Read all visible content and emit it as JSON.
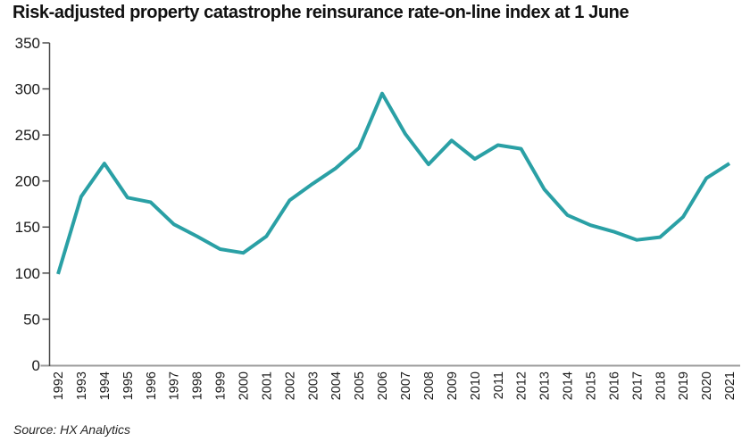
{
  "page": {
    "title": "Risk-adjusted property catastrophe reinsurance rate-on-line index at 1 June",
    "source": "Source: HX Analytics"
  },
  "colors": {
    "line": "#2aa0a5",
    "y_axis": "#4a4a4a",
    "x_axis": "#9c9c9c",
    "tick_text": "#1a1a1a"
  },
  "chart_data": {
    "type": "line",
    "title": "Risk-adjusted property catastrophe reinsurance rate-on-line index at 1 June",
    "x": [
      "1992",
      "1993",
      "1994",
      "1995",
      "1996",
      "1997",
      "1998",
      "1999",
      "2000",
      "2001",
      "2002",
      "2003",
      "2004",
      "2005",
      "2006",
      "2007",
      "2008",
      "2009",
      "2010",
      "2011",
      "2012",
      "2013",
      "2014",
      "2015",
      "2016",
      "2017",
      "2018",
      "2019",
      "2020",
      "2021"
    ],
    "series": [
      {
        "name": "Risk-adjusted property catastrophe reinsurance rate-on-line index",
        "values": [
          99,
          183,
          219,
          182,
          177,
          153,
          140,
          126,
          122,
          140,
          179,
          197,
          214,
          236,
          295,
          251,
          218,
          244,
          224,
          239,
          235,
          191,
          163,
          152,
          145,
          136,
          139,
          161,
          203,
          219
        ]
      }
    ],
    "xlabel": "",
    "ylabel": "",
    "ylim": [
      0,
      350
    ],
    "ytick_step": 50,
    "grid": false,
    "legend": "none",
    "source": "Source: HX Analytics"
  }
}
